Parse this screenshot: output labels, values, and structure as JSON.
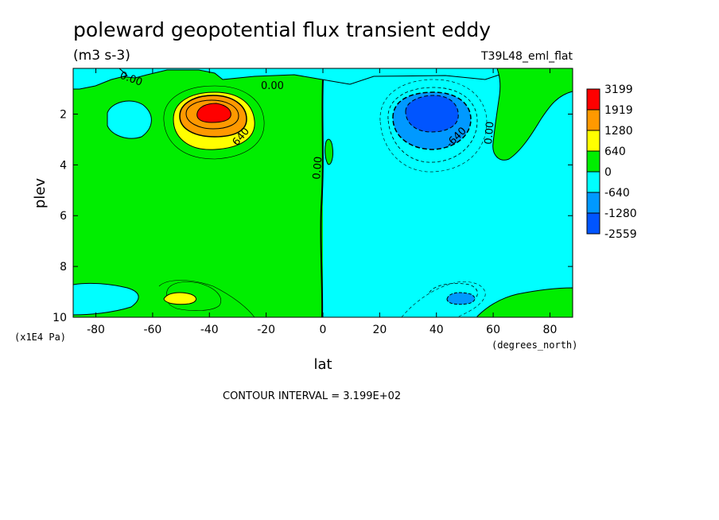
{
  "chart_data": {
    "type": "heatmap",
    "title": "poleward geopotential flux transient eddy",
    "units": "(m3 s-3)",
    "run_label": "T39L48_eml_flat",
    "xlabel": "lat",
    "x_units": "(degrees_north)",
    "ylabel": "plev",
    "y_units": "(x1E4 Pa)",
    "xlim": [
      -88,
      88
    ],
    "ylim": [
      10,
      0.2
    ],
    "x_ticks": [
      "-80",
      "-60",
      "-40",
      "-20",
      "0",
      "20",
      "40",
      "60",
      "80"
    ],
    "x_tick_values": [
      -80,
      -60,
      -40,
      -20,
      0,
      20,
      40,
      60,
      80
    ],
    "y_ticks": [
      "2",
      "4",
      "6",
      "8",
      "10"
    ],
    "y_tick_values": [
      2,
      4,
      6,
      8,
      10
    ],
    "contour_interval": "CONTOUR INTERVAL = 3.199E+02",
    "contour_labels": [
      "0.00",
      "0.00",
      "640",
      "0.00",
      "0.00",
      "-640",
      "0.00"
    ],
    "colorbar": {
      "levels": [
        "3199",
        "1919",
        "1280",
        "640",
        "0",
        "-640",
        "-1280",
        "-2559"
      ],
      "colors": [
        "#ff0000",
        "#ff9900",
        "#ffff00",
        "#00ee00",
        "#00ffff",
        "#0099ff",
        "#0055ff"
      ]
    },
    "features": [
      {
        "name": "southern positive maximum",
        "lat": -40,
        "plev": 2,
        "value": 3199
      },
      {
        "name": "northern negative minimum",
        "lat": 38,
        "plev": 1.8,
        "value": -2559
      },
      {
        "name": "southern lower-level positive",
        "lat": -52,
        "plev": 9.2,
        "value": 640
      },
      {
        "name": "northern lower-level negative",
        "lat": 48,
        "plev": 9.2,
        "value": -1280
      }
    ]
  }
}
